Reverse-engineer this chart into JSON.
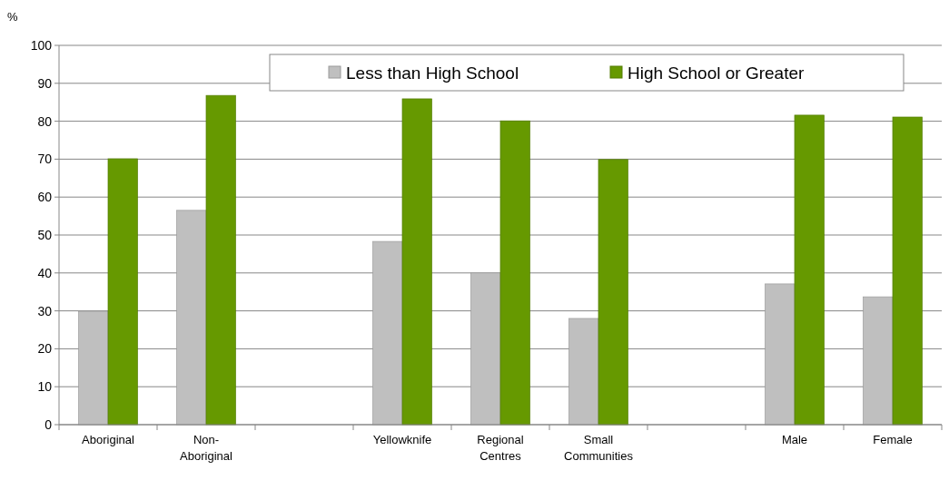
{
  "chart_data": {
    "type": "bar",
    "ylabel": "%",
    "categories": [
      "Aboriginal",
      "Non-Aboriginal",
      null,
      "Yellowknife",
      "Regional Centres",
      "Small Communities",
      null,
      "Male",
      "Female"
    ],
    "series": [
      {
        "name": "Less than High School",
        "color": "#bfbfbf",
        "values": [
          29.9,
          56.5,
          null,
          48.3,
          40,
          28,
          null,
          37.1,
          33.7
        ]
      },
      {
        "name": "High School or Greater",
        "color": "#669900",
        "values": [
          70.1,
          86.8,
          null,
          85.9,
          80.1,
          69.9,
          null,
          81.6,
          81.1
        ]
      }
    ],
    "ylim": [
      0,
      100
    ],
    "yticks": [
      0,
      10,
      20,
      30,
      40,
      50,
      60,
      70,
      80,
      90,
      100
    ],
    "grid": "y",
    "legend": "top"
  }
}
